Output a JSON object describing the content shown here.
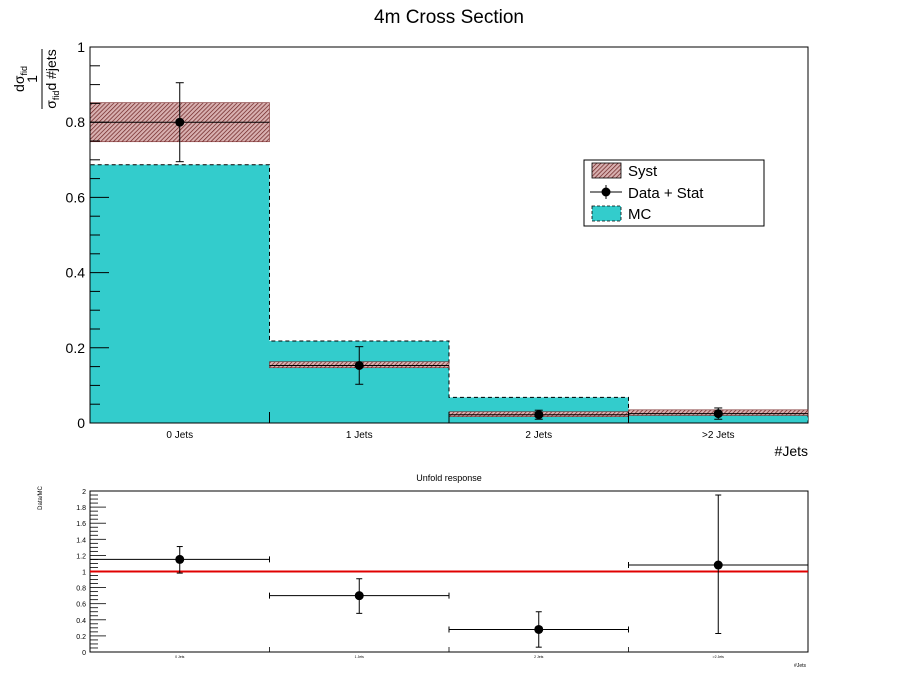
{
  "colors": {
    "mc_fill": "#33cccc",
    "syst_fill": "#a06060",
    "data": "#000000",
    "ratio_line": "#e00000",
    "axis": "#000000"
  },
  "chart_data": [
    {
      "type": "bar",
      "title": "4m Cross Section",
      "xlabel": "#Jets",
      "ylabel_parts": {
        "one": "1",
        "sigma": "σ",
        "fid": "fid",
        "d": "d",
        "jets": "d #jets"
      },
      "categories": [
        "0 Jets",
        "1 Jets",
        "2 Jets",
        ">2 Jets"
      ],
      "ylim": [
        0,
        1
      ],
      "y_ticks": [
        "0",
        "0.2",
        "0.4",
        "0.6",
        "0.8",
        "1"
      ],
      "y_tick_values": [
        0,
        0.2,
        0.4,
        0.6,
        0.8,
        1.0
      ],
      "series": [
        {
          "name": "MC",
          "values": [
            0.687,
            0.218,
            0.068,
            0.03
          ]
        },
        {
          "name": "Data + Stat",
          "values": [
            0.8,
            0.153,
            0.022,
            0.025
          ],
          "err": [
            0.105,
            0.05,
            0.012,
            0.015
          ]
        },
        {
          "name": "Syst",
          "low": [
            0.748,
            0.147,
            0.017,
            0.02
          ],
          "high": [
            0.852,
            0.163,
            0.03,
            0.035
          ]
        }
      ],
      "legend": {
        "placement": "center-right",
        "entries": [
          "Syst",
          "Data + Stat",
          "MC"
        ]
      }
    },
    {
      "type": "scatter",
      "title": "Unfold response",
      "xlabel": "#Jets",
      "ylabel": "Data/MC",
      "categories": [
        "0 Jets",
        "1 Jets",
        "2 Jets",
        ">2 Jets"
      ],
      "ylim": [
        0,
        2
      ],
      "y_ticks": [
        "0",
        "0.2",
        "0.4",
        "0.6",
        "0.8",
        "1",
        "1.2",
        "1.4",
        "1.6",
        "1.8",
        "2"
      ],
      "y_tick_values": [
        0,
        0.2,
        0.4,
        0.6,
        0.8,
        1.0,
        1.2,
        1.4,
        1.6,
        1.8,
        2.0
      ],
      "series": [
        {
          "name": "ratio",
          "values": [
            1.15,
            0.7,
            0.28,
            1.08
          ],
          "err_low": [
            0.17,
            0.22,
            0.22,
            0.85
          ],
          "err_high": [
            0.16,
            0.21,
            0.22,
            0.87
          ]
        }
      ],
      "reference_line": 1.0
    }
  ]
}
